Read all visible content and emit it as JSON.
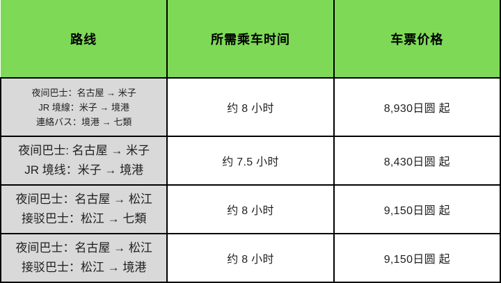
{
  "table": {
    "colors": {
      "header_bg": "#7ED957",
      "route_bg": "#D9D9D9",
      "border": "#000000",
      "text": "#1F1F1F"
    },
    "headers": {
      "route": "路线",
      "duration": "所需乘车时间",
      "price": "车票价格"
    },
    "rows": [
      {
        "route_lines": {
          "0": "夜间巴士：名古屋 → 米子",
          "1": "JR 境線：米子 → 境港",
          "2": "連絡バス：境港 → 七類"
        },
        "duration": "约 8 小时",
        "price": "8,930日圆 起"
      },
      {
        "route_lines": {
          "0": "夜间巴士: 名古屋 → 米子",
          "1": "JR 境线：米子 → 境港"
        },
        "duration": "约 7.5 小时",
        "price": "8,430日圆 起"
      },
      {
        "route_lines": {
          "0": "夜间巴士：名古屋 → 松江",
          "1": "接驳巴士：松江 → 七類"
        },
        "duration": "约 8 小时",
        "price": "9,150日圆 起"
      },
      {
        "route_lines": {
          "0": "夜间巴士：名古屋 → 松江",
          "1": "接驳巴士：松江 → 境港"
        },
        "duration": "约 8 小时",
        "price": "9,150日圆 起"
      }
    ]
  }
}
